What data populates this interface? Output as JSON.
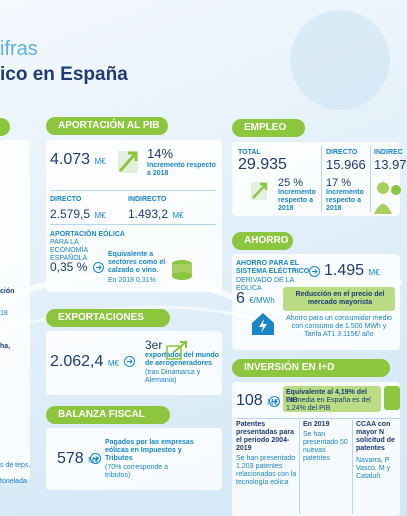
{
  "header": {
    "title_line1": "ifras",
    "title_line2": "ico en España"
  },
  "left_fragments": [
    "ción",
    "18",
    "ha,",
    "s de teps,",
    "tonelada"
  ],
  "pib": {
    "heading": "APORTACIÓN AL PIB",
    "total_value": "4.073",
    "unit": "M€",
    "increase": "14%",
    "increase_label": "Incremento respecto a 2018",
    "direct_label": "DIRECTO",
    "direct_value": "2.579,5",
    "indirect_label": "INDIRECTO",
    "indirect_value": "1.493,2",
    "share_title": "APORTACIÓN EÓLICA",
    "share_subtitle": "PARA LA ECONOMÍA ESPAÑOLA",
    "share_value": "0,35 %",
    "share_note": "Equivalente a sectores como el calzado o vino.",
    "share_previous": "En 2018 0,31%"
  },
  "exports": {
    "heading": "EXPORTACIONES",
    "value": "2.062,4",
    "unit": "M€",
    "rank": "3er",
    "rank_label": "exportador del mundo de aerogeneradores",
    "rank_note": "(tras Dinamarca y Alemania)"
  },
  "fiscal": {
    "heading": "BALANZA FISCAL",
    "value": "578",
    "unit": "M€",
    "label": "Pagados por las empresas eólicas en Impuestos y Tributos",
    "note": "(70% corresponde a tributos)"
  },
  "employment": {
    "heading": "EMPLEO",
    "total_label": "TOTAL",
    "total_value": "29.935",
    "total_increase": "25 %",
    "increase_label": "Incremento respecto a 2018",
    "direct_label": "DIRECTO",
    "direct_value": "15.966",
    "direct_increase": "17 %",
    "indirect_label": "INDIREC",
    "indirect_value": "13.97"
  },
  "savings": {
    "heading": "AHORRO",
    "title": "AHORRO PARA EL SISTEMA ELÉCTRICO",
    "subtitle": "DERIVADO DE LA EÓLICA",
    "value": "1.495",
    "unit": "M€",
    "price_value": "6",
    "price_unit": "€/MWh",
    "price_label": "Reducción en el precio del mercado mayorista",
    "consumer_note": "Ahorro para un consumidor medio con consumo de 1.500 MWh y Tarifa AT1 3.115€/ año"
  },
  "rnd": {
    "heading": "INVERSIÓN EN I+D",
    "value": "108",
    "unit": "M€",
    "equivalent": "Equivalente al 4,19% del PIB",
    "average": "La media en España es del 1,24% del PIB",
    "patents_title": "Patentes presentadas para el periodo 2004-2019",
    "patents_text": "Se han presentado 1.203 patentes relacionadas con la tecnología eólica",
    "year_title": "En 2019",
    "year_text": "Se han presentado 50 nuevas patentes",
    "regions_title": "CCAA con mayor N solicitud de patentes",
    "regions_text": "Navarra, P Vasco, M y Cataluñ"
  }
}
